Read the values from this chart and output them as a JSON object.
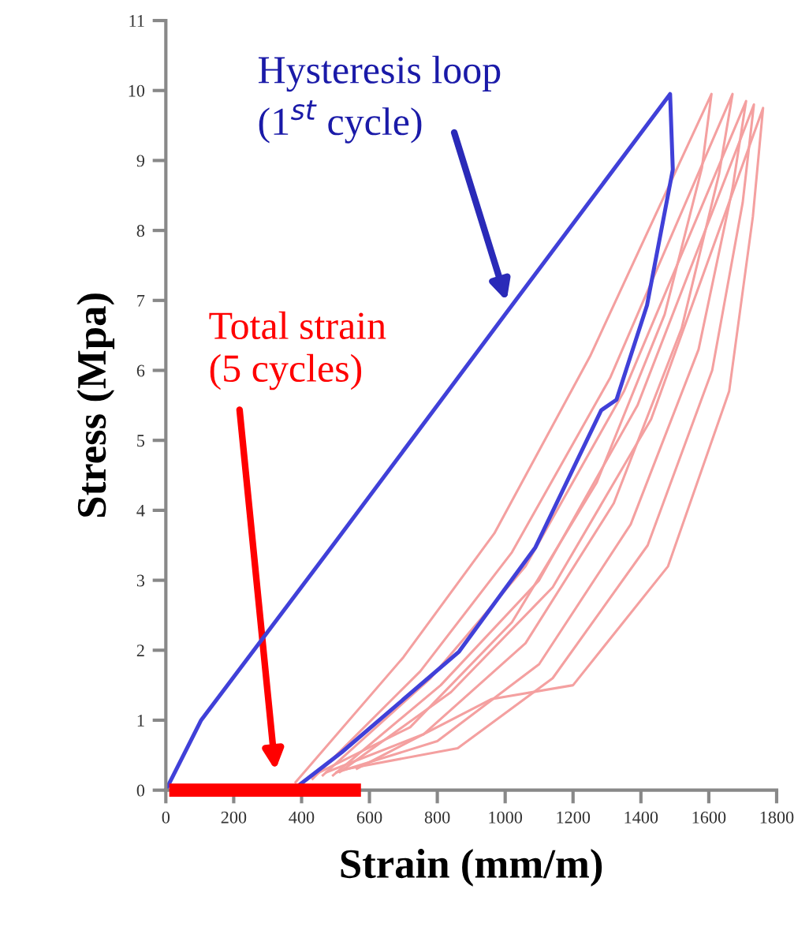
{
  "chart_data": {
    "type": "line",
    "xlabel": "Strain (mm/m)",
    "ylabel": "Stress (Mpa)",
    "xlim": [
      0,
      1800
    ],
    "ylim": [
      0,
      11
    ],
    "xticks": [
      0,
      200,
      400,
      600,
      800,
      1000,
      1200,
      1400,
      1600,
      1800
    ],
    "yticks": [
      0,
      1,
      2,
      3,
      4,
      5,
      6,
      7,
      8,
      9,
      10,
      11
    ],
    "grid": false,
    "legend": false,
    "marker": "none",
    "line_style": "solid",
    "series": [
      {
        "color": "#f4a0a0",
        "x": [
          380,
          700,
          968,
          1250,
          1608,
          1580,
          1470,
          1270,
          1020,
          720,
          430
        ],
        "values": [
          0.1,
          1.9,
          3.67,
          6.2,
          9.95,
          8.9,
          6.8,
          4.4,
          2.4,
          0.9,
          0.2
        ]
      },
      {
        "color": "#f4a0a0",
        "x": [
          430,
          750,
          1020,
          1310,
          1670,
          1630,
          1520,
          1320,
          1060,
          760,
          470
        ],
        "values": [
          0.15,
          1.7,
          3.4,
          5.9,
          9.95,
          8.8,
          6.6,
          4.1,
          2.1,
          0.8,
          0.25
        ]
      },
      {
        "color": "#f4a0a0",
        "x": [
          460,
          780,
          1060,
          1350,
          1710,
          1670,
          1570,
          1370,
          1100,
          800,
          500
        ],
        "values": [
          0.2,
          1.6,
          3.2,
          5.7,
          9.85,
          8.6,
          6.3,
          3.8,
          1.8,
          0.7,
          0.25
        ]
      },
      {
        "color": "#f4a0a0",
        "x": [
          490,
          810,
          1100,
          1390,
          1733,
          1700,
          1610,
          1420,
          1140,
          860,
          530
        ],
        "values": [
          0.2,
          1.5,
          3.0,
          5.5,
          9.8,
          8.4,
          6.0,
          3.5,
          1.6,
          0.6,
          0.3
        ]
      },
      {
        "color": "#f4a0a0",
        "x": [
          510,
          840,
          1140,
          1430,
          1760,
          1730,
          1660,
          1480,
          1200,
          959,
          560
        ],
        "values": [
          0.25,
          1.4,
          2.9,
          5.3,
          9.75,
          8.2,
          5.7,
          3.2,
          1.5,
          1.3,
          0.3
        ]
      },
      {
        "color": "#4040d8",
        "x": [
          0,
          104,
          500,
          1000,
          1486,
          1494,
          1418,
          1328,
          1283,
          1089,
          864,
          518,
          392
        ],
        "values": [
          0,
          1.0,
          3.55,
          6.8,
          9.95,
          8.87,
          6.93,
          5.58,
          5.43,
          3.47,
          1.98,
          0.54,
          0.07
        ]
      },
      {
        "color": "#ff0000",
        "x": [
          10,
          575
        ],
        "values": [
          0,
          0
        ]
      }
    ],
    "annotations": [
      "Hysteresis loop\n(1$^{st}$ cycle)",
      "Total strain\n(5 cycles)"
    ]
  }
}
